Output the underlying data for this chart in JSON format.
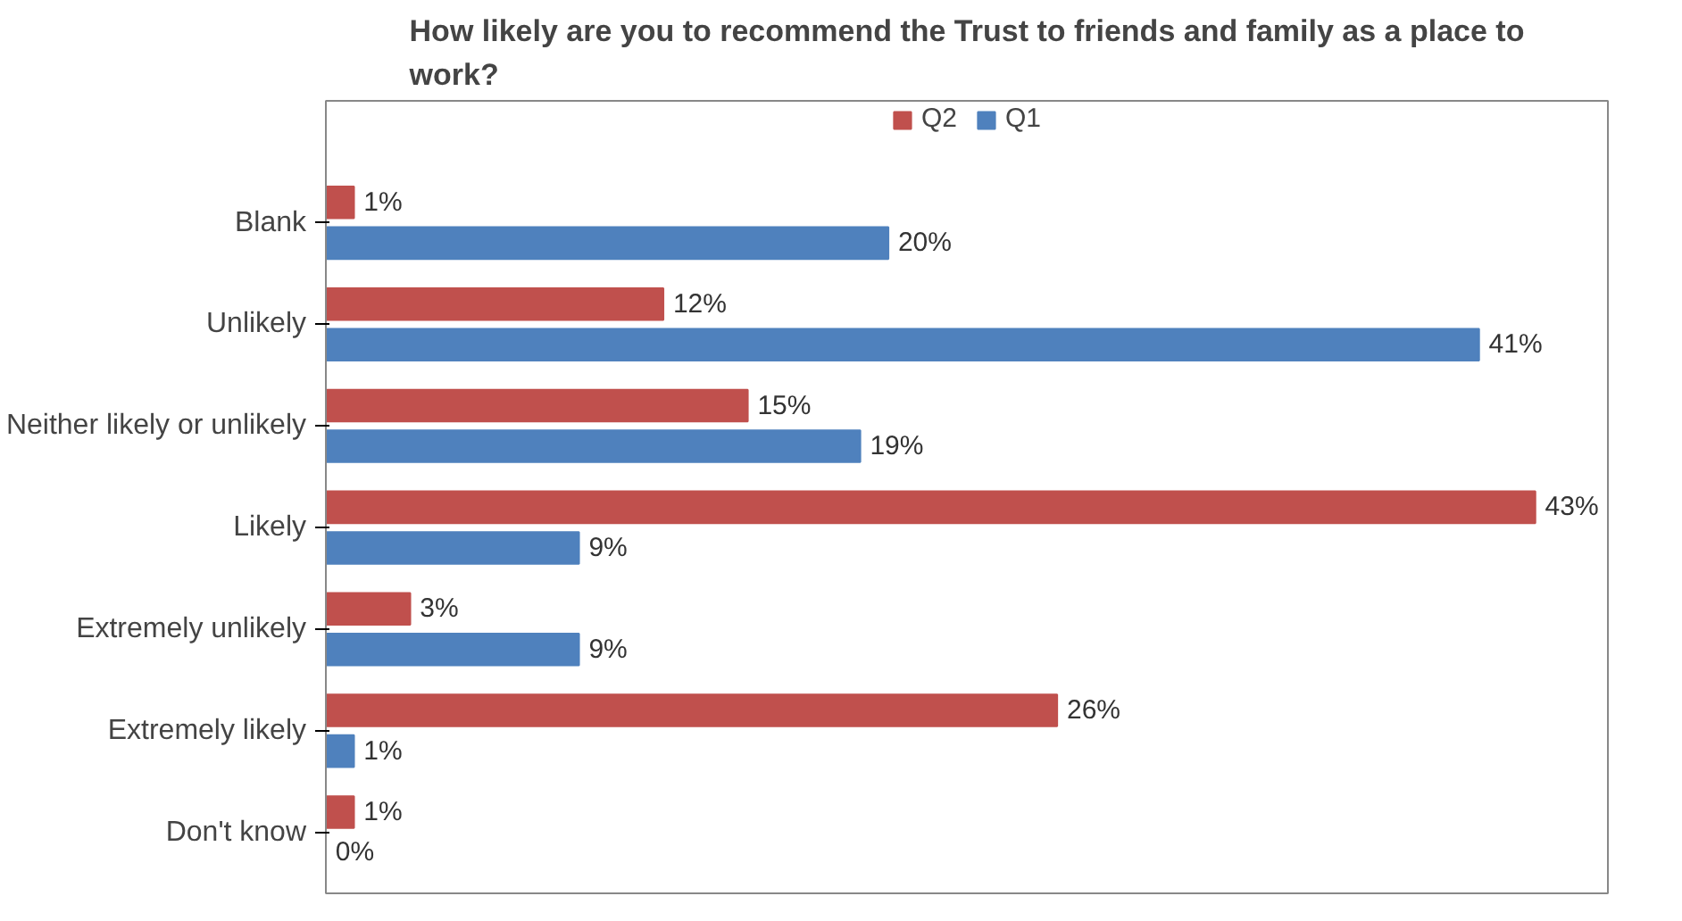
{
  "chart_data": {
    "type": "bar",
    "orientation": "horizontal",
    "title": "How likely are you to recommend the Trust to friends and family as a place to work?",
    "categories": [
      "Blank",
      "Unlikely",
      "Neither likely or unlikely",
      "Likely",
      "Extremely unlikely",
      "Extremely likely",
      "Don't know"
    ],
    "series": [
      {
        "name": "Q2",
        "color": "#c0504d",
        "values": [
          1,
          12,
          15,
          43,
          3,
          26,
          1
        ],
        "value_labels": [
          "1%",
          "12%",
          "15%",
          "43%",
          "3%",
          "26%",
          "1%"
        ]
      },
      {
        "name": "Q1",
        "color": "#4f81bd",
        "values": [
          20,
          41,
          19,
          9,
          9,
          1,
          0
        ],
        "value_labels": [
          "20%",
          "41%",
          "19%",
          "9%",
          "9%",
          "1%",
          "0%"
        ]
      }
    ],
    "xlim": [
      0,
      43
    ],
    "tick_labels": "y",
    "grid": false,
    "legend": "top"
  }
}
